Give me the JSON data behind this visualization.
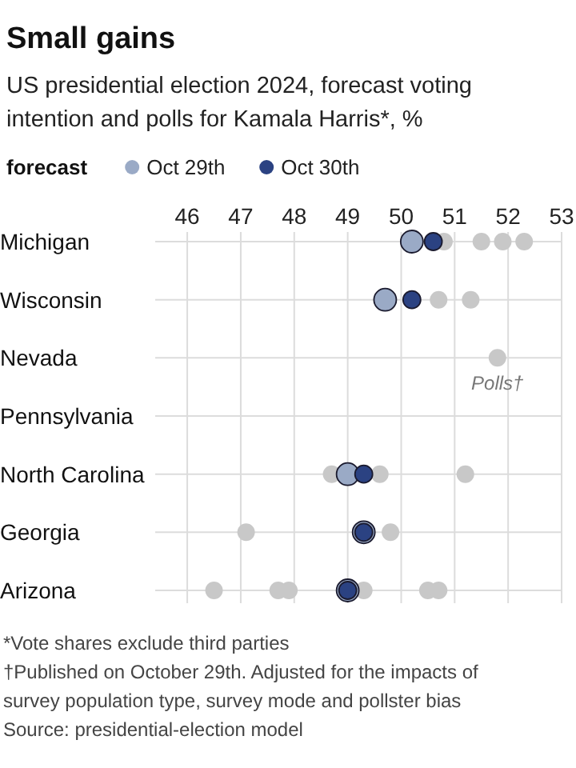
{
  "chart_data": {
    "type": "scatter",
    "orientation": "horizontal",
    "title": "Small gains",
    "subtitle": "US presidential election 2024, forecast voting intention and polls for Kamala Harris*, %",
    "legend_title": "forecast",
    "legend": "top",
    "grid": true,
    "marker": "circle",
    "categories": [
      "Michigan",
      "Wisconsin",
      "Nevada",
      "Pennsylvania",
      "North Carolina",
      "Georgia",
      "Arizona"
    ],
    "xlim": [
      45.4,
      53
    ],
    "xticks": [
      46,
      47,
      48,
      49,
      50,
      51,
      52,
      53
    ],
    "series": [
      {
        "color": "#c8c8c8",
        "values": [
          50.8,
          50.7,
          51.8,
          null,
          48.7,
          47.1,
          46.5
        ]
      },
      {
        "color": "#c8c8c8",
        "values": [
          51.5,
          51.3,
          null,
          null,
          49.6,
          49.8,
          47.7
        ]
      },
      {
        "color": "#c8c8c8",
        "values": [
          51.9,
          null,
          null,
          null,
          51.2,
          null,
          47.9
        ]
      },
      {
        "color": "#c8c8c8",
        "values": [
          52.3,
          null,
          null,
          null,
          null,
          null,
          49.3
        ]
      },
      {
        "color": "#c8c8c8",
        "values": [
          null,
          null,
          null,
          null,
          null,
          null,
          50.5
        ]
      },
      {
        "color": "#c8c8c8",
        "values": [
          null,
          null,
          null,
          null,
          null,
          null,
          50.7
        ]
      },
      {
        "name": "Oct 29th",
        "color": "#9aaac6",
        "values": [
          50.2,
          49.7,
          null,
          null,
          49.0,
          49.3,
          49.0
        ]
      },
      {
        "name": "Oct 30th",
        "color": "#2b4282",
        "values": [
          50.6,
          50.2,
          null,
          null,
          49.3,
          49.3,
          49.0
        ]
      }
    ],
    "annotations": [
      {
        "text": "Polls†",
        "x": 51.8,
        "y": "Nevada"
      },
      "*Vote shares exclude third parties",
      "†Published on October 29th. Adjusted for the impacts of survey population type, survey mode and pollster bias",
      "Source: presidential-election model"
    ]
  }
}
